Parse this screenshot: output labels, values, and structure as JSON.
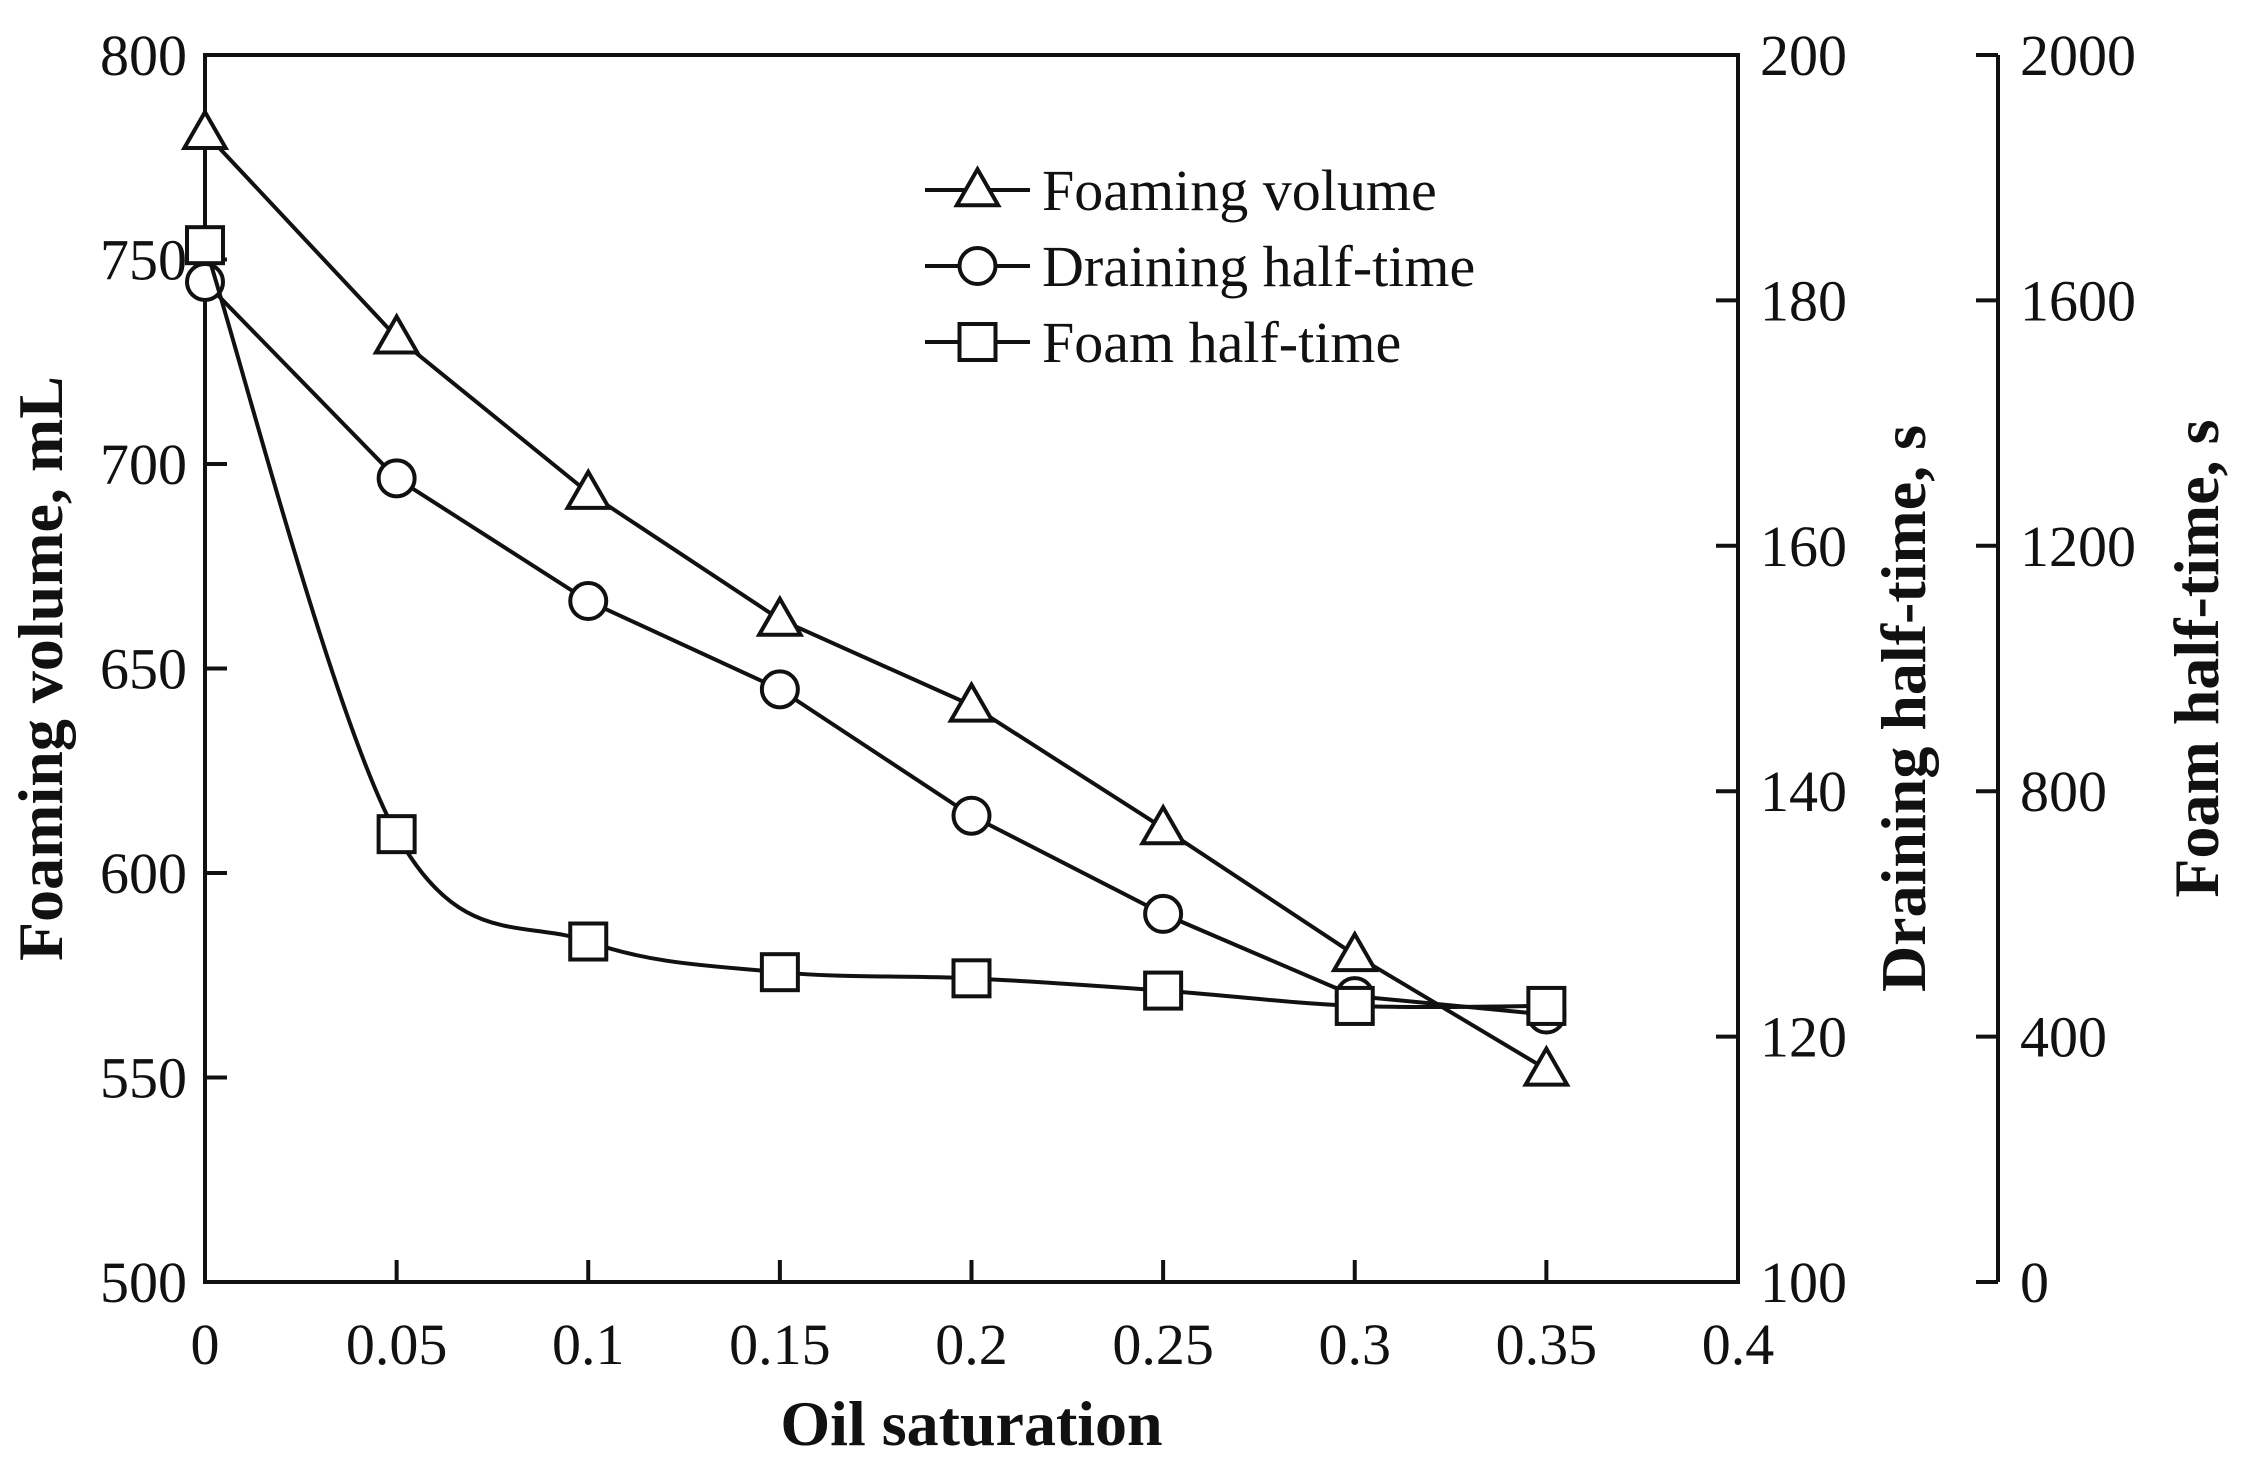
{
  "chart_data": {
    "type": "line",
    "title": "",
    "xlabel": "Oil  saturation",
    "xlim": [
      0,
      0.4
    ],
    "xticks": [
      "0",
      "0.05",
      "0.1",
      "0.15",
      "0.2",
      "0.25",
      "0.3",
      "0.35",
      "0.4"
    ],
    "y_axes": [
      {
        "id": "left",
        "label": "Foaming volume, mL",
        "lim": [
          500,
          800
        ],
        "ticks": [
          "500",
          "550",
          "600",
          "650",
          "700",
          "750",
          "800"
        ]
      },
      {
        "id": "right1",
        "label": "Draining half-time, s",
        "lim": [
          100,
          200
        ],
        "ticks": [
          "100",
          "120",
          "140",
          "160",
          "180",
          "200"
        ]
      },
      {
        "id": "right2",
        "label": "Foam half-time, s",
        "lim": [
          0,
          2000
        ],
        "ticks": [
          "0",
          "400",
          "800",
          "1200",
          "1600",
          "2000"
        ]
      }
    ],
    "series": [
      {
        "name": "Foaming volume",
        "marker": "triangle",
        "axis": "left",
        "smooth": false,
        "x": [
          0,
          0.05,
          0.1,
          0.15,
          0.2,
          0.25,
          0.3,
          0.35
        ],
        "y": [
          781,
          731,
          693,
          662,
          641,
          611,
          580,
          552
        ]
      },
      {
        "name": "Draining half-time",
        "marker": "circle",
        "axis": "right1",
        "smooth": false,
        "x": [
          0,
          0.05,
          0.1,
          0.15,
          0.2,
          0.25,
          0.3,
          0.35
        ],
        "y": [
          181.5,
          165.5,
          155.5,
          148.3,
          138.0,
          130.0,
          123.3,
          121.8
        ]
      },
      {
        "name": "Foam half-time",
        "marker": "square",
        "axis": "right2",
        "smooth": true,
        "x": [
          0,
          0.05,
          0.1,
          0.15,
          0.2,
          0.25,
          0.3,
          0.35
        ],
        "y": [
          1690,
          730,
          555,
          505,
          495,
          475,
          450,
          450
        ]
      }
    ],
    "legend": "top-right",
    "grid": false
  }
}
